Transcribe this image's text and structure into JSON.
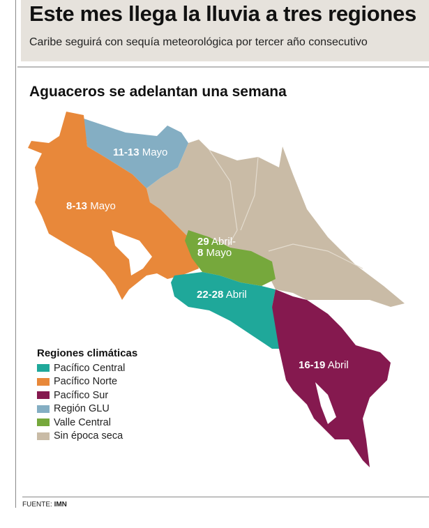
{
  "header": {
    "title": "Este mes llega la lluvia a tres regiones",
    "subtitle": "Caribe seguirá con sequía meteorológica por tercer año consecutivo"
  },
  "map": {
    "title": "Aguaceros se adelantan una semana",
    "labels": {
      "glu": {
        "dates": "11-13",
        "month": " Mayo"
      },
      "norte": {
        "dates": "8-13",
        "month": " Mayo"
      },
      "valle": {
        "line1_bold": "29",
        "line1": " Abril-",
        "line2_bold": "8",
        "line2": " Mayo"
      },
      "central": {
        "dates": "22-28",
        "month": " Abril"
      },
      "sur": {
        "dates": "16-19",
        "month": " Abril"
      }
    }
  },
  "legend": {
    "title": "Regiones climáticas",
    "items": [
      {
        "label": "Pacífico Central",
        "color": "#1fa89a"
      },
      {
        "label": "Pacífico Norte",
        "color": "#e8883a"
      },
      {
        "label": "Pacífico Sur",
        "color": "#85194f"
      },
      {
        "label": "Región GLU",
        "color": "#84aec3"
      },
      {
        "label": "Valle Central",
        "color": "#76a83c"
      },
      {
        "label": "Sin época seca",
        "color": "#c9bba6"
      }
    ]
  },
  "source": {
    "label": "FUENTE:",
    "value": "IMN"
  }
}
